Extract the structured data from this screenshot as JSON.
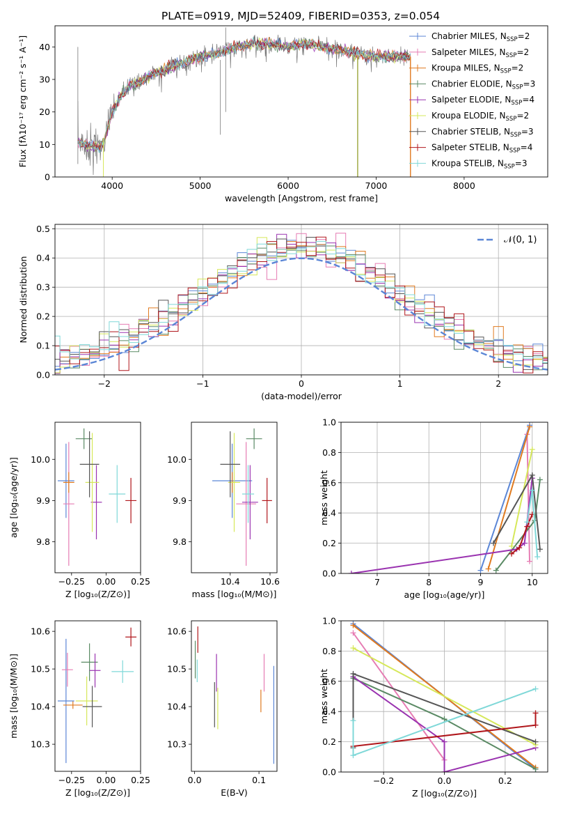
{
  "page_title": "PLATE=0919, MJD=52409, FIBERID=0353, z=0.054",
  "colors": {
    "Chabrier MILES": "#5b86d6",
    "Salpeter MILES": "#e67cb3",
    "Kroupa MILES": "#e07a1f",
    "Chabrier ELODIE": "#5a8a64",
    "Salpeter ELODIE": "#9a33b0",
    "Kroupa ELODIE": "#d6e85a",
    "Chabrier STELIB": "#555555",
    "Salpeter STELIB": "#b0161b",
    "Kroupa STELIB": "#7fd8d8"
  },
  "chart_data": [
    {
      "id": "spectrum",
      "type": "line",
      "xlabel": "wavelength [Angstrom, rest frame]",
      "ylabel": "Flux [fλ10⁻¹⁷ erg cm⁻² s⁻¹ A⁻¹]",
      "xlim": [
        3350,
        8950
      ],
      "ylim": [
        0,
        46.5
      ],
      "xticks": [
        4000,
        5000,
        6000,
        7000,
        8000
      ],
      "yticks": [
        0,
        10,
        20,
        30,
        40
      ],
      "grid": false,
      "legend_position": "right",
      "continuum": {
        "x": [
          3600,
          3700,
          3800,
          3900,
          4000,
          4100,
          4200,
          4300,
          4400,
          4600,
          4800,
          5000,
          5200,
          5400,
          5600,
          5800,
          6000,
          6200,
          6400,
          6600,
          6800,
          7000,
          7200,
          7400
        ],
        "y": [
          11,
          10,
          9,
          10,
          20,
          25,
          28,
          29,
          31,
          33,
          35,
          37,
          38,
          40,
          41,
          41,
          40,
          41,
          40,
          39,
          38,
          37,
          37,
          37
        ]
      },
      "series": [
        {
          "name": "Chabrier MILES, N_SSP=2",
          "label_main": "Chabrier MILES, N",
          "label_sub": "SSP",
          "label_tail": "=2"
        },
        {
          "name": "Salpeter MILES, N_SSP=2",
          "label_main": "Salpeter MILES, N",
          "label_sub": "SSP",
          "label_tail": "=2"
        },
        {
          "name": "Kroupa MILES, N_SSP=2",
          "label_main": "Kroupa MILES, N",
          "label_sub": "SSP",
          "label_tail": "=2"
        },
        {
          "name": "Chabrier ELODIE, N_SSP=3",
          "label_main": "Chabrier ELODIE, N",
          "label_sub": "SSP",
          "label_tail": "=3"
        },
        {
          "name": "Salpeter ELODIE, N_SSP=4",
          "label_main": "Salpeter ELODIE, N",
          "label_sub": "SSP",
          "label_tail": "=4"
        },
        {
          "name": "Kroupa ELODIE, N_SSP=2",
          "label_main": "Kroupa ELODIE, N",
          "label_sub": "SSP",
          "label_tail": "=2"
        },
        {
          "name": "Chabrier STELIB, N_SSP=3",
          "label_main": "Chabrier STELIB, N",
          "label_sub": "SSP",
          "label_tail": "=3"
        },
        {
          "name": "Salpeter STELIB, N_SSP=4",
          "label_main": "Salpeter STELIB, N",
          "label_sub": "SSP",
          "label_tail": "=4"
        },
        {
          "name": "Kroupa STELIB, N_SSP=3",
          "label_main": "Kroupa STELIB, N",
          "label_sub": "SSP",
          "label_tail": "=3"
        }
      ]
    },
    {
      "id": "residuals",
      "type": "line",
      "xlabel": "(data-model)/error",
      "ylabel": "Normed distribution",
      "xlim": [
        -2.5,
        2.5
      ],
      "ylim": [
        0,
        0.515
      ],
      "xticks": [
        -2,
        -1,
        0,
        1,
        2
      ],
      "yticks": [
        0.0,
        0.1,
        0.2,
        0.3,
        0.4,
        0.5
      ],
      "grid": true,
      "legend_position": "top-right",
      "legend_label": "𝒩(0, 1)",
      "bin_width": 0.1
    },
    {
      "id": "age_vs_Z",
      "type": "scatter",
      "xlabel": "Z [log₁₀(Z/Z⊙)]",
      "ylabel": "age  [log₁₀(age/yr)]",
      "xlim": [
        -0.37,
        0.25
      ],
      "ylim": [
        9.725,
        10.09
      ],
      "xticks": [
        -0.25,
        0.0,
        0.25
      ],
      "yticks": [
        9.8,
        9.9,
        10.0
      ],
      "points": [
        {
          "series": "Chabrier MILES",
          "x": -0.29,
          "y": 9.948,
          "xerr": 0.06,
          "yerr": 0.09
        },
        {
          "series": "Salpeter MILES",
          "x": -0.27,
          "y": 9.892,
          "xerr": 0.04,
          "yerr": 0.15
        },
        {
          "series": "Kroupa MILES",
          "x": -0.27,
          "y": 9.944,
          "xerr": 0.04,
          "yerr": 0.025
        },
        {
          "series": "Chabrier ELODIE",
          "x": -0.16,
          "y": 10.05,
          "xerr": 0.06,
          "yerr": 0.025
        },
        {
          "series": "Salpeter ELODIE",
          "x": -0.07,
          "y": 9.896,
          "xerr": 0.04,
          "yerr": 0.09
        },
        {
          "series": "Kroupa ELODIE",
          "x": -0.1,
          "y": 9.944,
          "xerr": 0.05,
          "yerr": 0.12
        },
        {
          "series": "Chabrier STELIB",
          "x": -0.12,
          "y": 9.988,
          "xerr": 0.07,
          "yerr": 0.08
        },
        {
          "series": "Salpeter STELIB",
          "x": 0.18,
          "y": 9.9,
          "xerr": 0.04,
          "yerr": 0.055
        },
        {
          "series": "Kroupa STELIB",
          "x": 0.08,
          "y": 9.916,
          "xerr": 0.06,
          "yerr": 0.07
        }
      ]
    },
    {
      "id": "age_vs_mass",
      "type": "scatter",
      "xlabel": "mass [log₁₀(M/M⊙)]",
      "ylabel": "",
      "xlim": [
        10.205,
        10.635
      ],
      "ylim": [
        9.725,
        10.09
      ],
      "xticks": [
        10.4,
        10.6
      ],
      "yticks": [
        9.8,
        9.9,
        10.0
      ],
      "points": [
        {
          "series": "Chabrier MILES",
          "x": 10.41,
          "y": 9.948,
          "xerr": 0.1,
          "yerr": 0.09
        },
        {
          "series": "Salpeter MILES",
          "x": 10.48,
          "y": 9.892,
          "xerr": 0.05,
          "yerr": 0.15
        },
        {
          "series": "Kroupa MILES",
          "x": 10.41,
          "y": 9.944,
          "xerr": 0.02,
          "yerr": 0.025
        },
        {
          "series": "Chabrier ELODIE",
          "x": 10.52,
          "y": 10.05,
          "xerr": 0.04,
          "yerr": 0.025
        },
        {
          "series": "Salpeter ELODIE",
          "x": 10.5,
          "y": 9.896,
          "xerr": 0.04,
          "yerr": 0.09
        },
        {
          "series": "Kroupa ELODIE",
          "x": 10.42,
          "y": 9.944,
          "xerr": 0.03,
          "yerr": 0.12
        },
        {
          "series": "Chabrier STELIB",
          "x": 10.4,
          "y": 9.988,
          "xerr": 0.05,
          "yerr": 0.08
        },
        {
          "series": "Salpeter STELIB",
          "x": 10.585,
          "y": 9.9,
          "xerr": 0.025,
          "yerr": 0.055
        },
        {
          "series": "Kroupa STELIB",
          "x": 10.49,
          "y": 9.916,
          "xerr": 0.03,
          "yerr": 0.07
        }
      ]
    },
    {
      "id": "weight_vs_age",
      "type": "line",
      "xlabel": "age  [log₁₀(age/yr)]",
      "ylabel": "mass weight",
      "xlim": [
        6.3,
        10.3
      ],
      "ylim": [
        0,
        1.0
      ],
      "xticks": [
        7,
        8,
        9,
        10
      ],
      "yticks": [
        0.0,
        0.2,
        0.4,
        0.6,
        0.8,
        1.0
      ],
      "grid": true,
      "series": [
        {
          "name": "Chabrier MILES",
          "x": [
            9.0,
            9.95
          ],
          "y": [
            0.02,
            0.98
          ]
        },
        {
          "name": "Salpeter MILES",
          "x": [
            9.9,
            9.95
          ],
          "y": [
            0.92,
            0.08
          ]
        },
        {
          "name": "Kroupa MILES",
          "x": [
            9.15,
            9.95
          ],
          "y": [
            0.03,
            0.97
          ]
        },
        {
          "name": "Chabrier ELODIE",
          "x": [
            9.3,
            10.05,
            10.15
          ],
          "y": [
            0.02,
            0.35,
            0.62
          ]
        },
        {
          "name": "Salpeter ELODIE",
          "x": [
            6.5,
            9.7,
            9.85,
            10.0
          ],
          "y": [
            0.0,
            0.16,
            0.2,
            0.63
          ]
        },
        {
          "name": "Kroupa ELODIE",
          "x": [
            9.6,
            10.0
          ],
          "y": [
            0.18,
            0.82
          ]
        },
        {
          "name": "Chabrier STELIB",
          "x": [
            9.25,
            10.0,
            10.15
          ],
          "y": [
            0.2,
            0.65,
            0.16
          ]
        },
        {
          "name": "Salpeter STELIB",
          "x": [
            9.6,
            9.75,
            9.9,
            10.0
          ],
          "y": [
            0.13,
            0.17,
            0.31,
            0.39
          ]
        },
        {
          "name": "Kroupa STELIB",
          "x": [
            9.9,
            10.0,
            10.1
          ],
          "y": [
            0.34,
            0.55,
            0.11
          ]
        }
      ]
    },
    {
      "id": "mass_vs_Z",
      "type": "scatter",
      "xlabel": "Z [log₁₀(Z/Z⊙)]",
      "ylabel": "mass [log₁₀(M/M⊙)]",
      "xlim": [
        -0.37,
        0.25
      ],
      "ylim": [
        10.228,
        10.628
      ],
      "xticks": [
        -0.25,
        0.0,
        0.25
      ],
      "yticks": [
        10.3,
        10.4,
        10.5,
        10.6
      ],
      "points": [
        {
          "series": "Chabrier MILES",
          "x": -0.29,
          "y": 10.415,
          "xerr": 0.06,
          "yerr": 0.165
        },
        {
          "series": "Salpeter MILES",
          "x": -0.28,
          "y": 10.498,
          "xerr": 0.04,
          "yerr": 0.045
        },
        {
          "series": "Kroupa MILES",
          "x": -0.24,
          "y": 10.404,
          "xerr": 0.07,
          "yerr": 0.01
        },
        {
          "series": "Chabrier ELODIE",
          "x": -0.12,
          "y": 10.518,
          "xerr": 0.06,
          "yerr": 0.05
        },
        {
          "series": "Salpeter ELODIE",
          "x": -0.08,
          "y": 10.496,
          "xerr": 0.04,
          "yerr": 0.045
        },
        {
          "series": "Kroupa ELODIE",
          "x": -0.14,
          "y": 10.415,
          "xerr": 0.08,
          "yerr": 0.065
        },
        {
          "series": "Chabrier STELIB",
          "x": -0.1,
          "y": 10.4,
          "xerr": 0.07,
          "yerr": 0.055
        },
        {
          "series": "Salpeter STELIB",
          "x": 0.18,
          "y": 10.585,
          "xerr": 0.04,
          "yerr": 0.025
        },
        {
          "series": "Kroupa STELIB",
          "x": 0.12,
          "y": 10.493,
          "xerr": 0.08,
          "yerr": 0.03
        }
      ]
    },
    {
      "id": "mass_vs_ebv",
      "type": "scatter",
      "xlabel": "E(B-V)",
      "ylabel": "",
      "xlim": [
        -0.005,
        0.128
      ],
      "ylim": [
        10.228,
        10.628
      ],
      "xticks": [
        0.0,
        0.1
      ],
      "yticks": [
        10.3,
        10.4,
        10.5,
        10.6
      ],
      "points": [
        {
          "series": "Chabrier MILES",
          "x": 0.123,
          "y": 10.378,
          "xerr": 0,
          "yerr": 0.13
        },
        {
          "series": "Salpeter MILES",
          "x": 0.108,
          "y": 10.49,
          "xerr": 0,
          "yerr": 0.05
        },
        {
          "series": "Kroupa MILES",
          "x": 0.103,
          "y": 10.415,
          "xerr": 0,
          "yerr": 0.03
        },
        {
          "series": "Chabrier ELODIE",
          "x": 0.001,
          "y": 10.525,
          "xerr": 0,
          "yerr": 0.05
        },
        {
          "series": "Salpeter ELODIE",
          "x": 0.034,
          "y": 10.49,
          "xerr": 0,
          "yerr": 0.05
        },
        {
          "series": "Kroupa ELODIE",
          "x": 0.036,
          "y": 10.395,
          "xerr": 0,
          "yerr": 0.055
        },
        {
          "series": "Chabrier STELIB",
          "x": 0.031,
          "y": 10.405,
          "xerr": 0,
          "yerr": 0.06
        },
        {
          "series": "Salpeter STELIB",
          "x": 0.005,
          "y": 10.578,
          "xerr": 0,
          "yerr": 0.035
        },
        {
          "series": "Kroupa STELIB",
          "x": 0.004,
          "y": 10.495,
          "xerr": 0,
          "yerr": 0.03
        }
      ]
    },
    {
      "id": "weight_vs_Z",
      "type": "line",
      "xlabel": "Z [log₁₀(Z/Z⊙)]",
      "ylabel": "mass weight",
      "xlim": [
        -0.34,
        0.34
      ],
      "ylim": [
        0,
        1.0
      ],
      "xticks": [
        -0.2,
        0.0,
        0.2
      ],
      "yticks": [
        0.0,
        0.2,
        0.4,
        0.6,
        0.8,
        1.0
      ],
      "grid": true,
      "series": [
        {
          "name": "Chabrier MILES",
          "x": [
            -0.3,
            0.3
          ],
          "y": [
            0.98,
            0.02
          ]
        },
        {
          "name": "Salpeter MILES",
          "x": [
            -0.3,
            0.0,
            0.0
          ],
          "y": [
            0.92,
            0.08,
            0.0
          ]
        },
        {
          "name": "Kroupa MILES",
          "x": [
            -0.3,
            0.3
          ],
          "y": [
            0.97,
            0.03
          ]
        },
        {
          "name": "Chabrier ELODIE",
          "x": [
            -0.3,
            0.0,
            0.3
          ],
          "y": [
            0.62,
            0.35,
            0.02
          ]
        },
        {
          "name": "Salpeter ELODIE",
          "x": [
            -0.3,
            0.0,
            0.0,
            0.3
          ],
          "y": [
            0.63,
            0.2,
            0.0,
            0.16
          ]
        },
        {
          "name": "Kroupa ELODIE",
          "x": [
            -0.3,
            0.3
          ],
          "y": [
            0.82,
            0.18
          ]
        },
        {
          "name": "Chabrier STELIB",
          "x": [
            -0.3,
            -0.3,
            0.3
          ],
          "y": [
            0.16,
            0.65,
            0.2
          ]
        },
        {
          "name": "Salpeter STELIB",
          "x": [
            -0.3,
            0.3,
            0.3
          ],
          "y": [
            0.17,
            0.31,
            0.39
          ]
        },
        {
          "name": "Kroupa STELIB",
          "x": [
            -0.3,
            -0.3,
            0.3
          ],
          "y": [
            0.34,
            0.11,
            0.55
          ]
        }
      ]
    }
  ]
}
